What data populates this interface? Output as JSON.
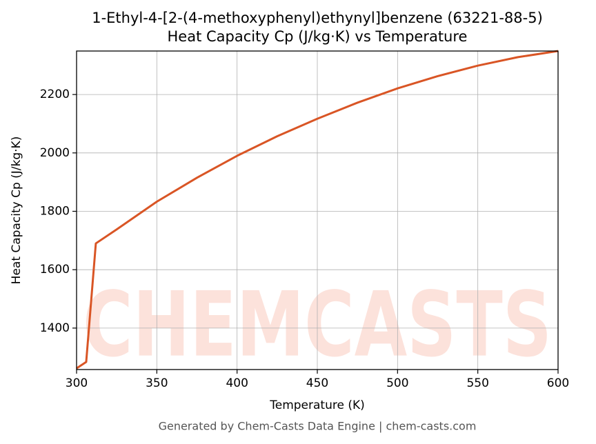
{
  "chart_data": {
    "type": "line",
    "title": "1-Ethyl-4-[2-(4-methoxyphenyl)ethynyl]benzene (63221-88-5)",
    "subtitle": "Heat Capacity Cp (J/kg·K) vs Temperature",
    "x_label": "Temperature (K)",
    "y_label": "Heat Capacity Cp (J/kg·K)",
    "footer": "Generated by Chem-Casts Data Engine | chem-casts.com",
    "watermark": "CHEMCASTS",
    "x": [
      300,
      306,
      312,
      325,
      350,
      375,
      400,
      425,
      450,
      475,
      500,
      525,
      550,
      575,
      600
    ],
    "series": [
      {
        "name": "Cp",
        "color": "#d95525",
        "values": [
          1262,
          1284,
          1690,
          1738,
          1833,
          1915,
          1990,
          2057,
          2117,
          2172,
          2221,
          2263,
          2299,
          2328,
          2349
        ]
      }
    ],
    "xlim": [
      300,
      600
    ],
    "xticks": [
      300,
      350,
      400,
      450,
      500,
      550,
      600
    ],
    "ylim": [
      1258,
      2349
    ],
    "yticks": [
      1400,
      1600,
      1800,
      2000,
      2200
    ],
    "grid": true
  }
}
